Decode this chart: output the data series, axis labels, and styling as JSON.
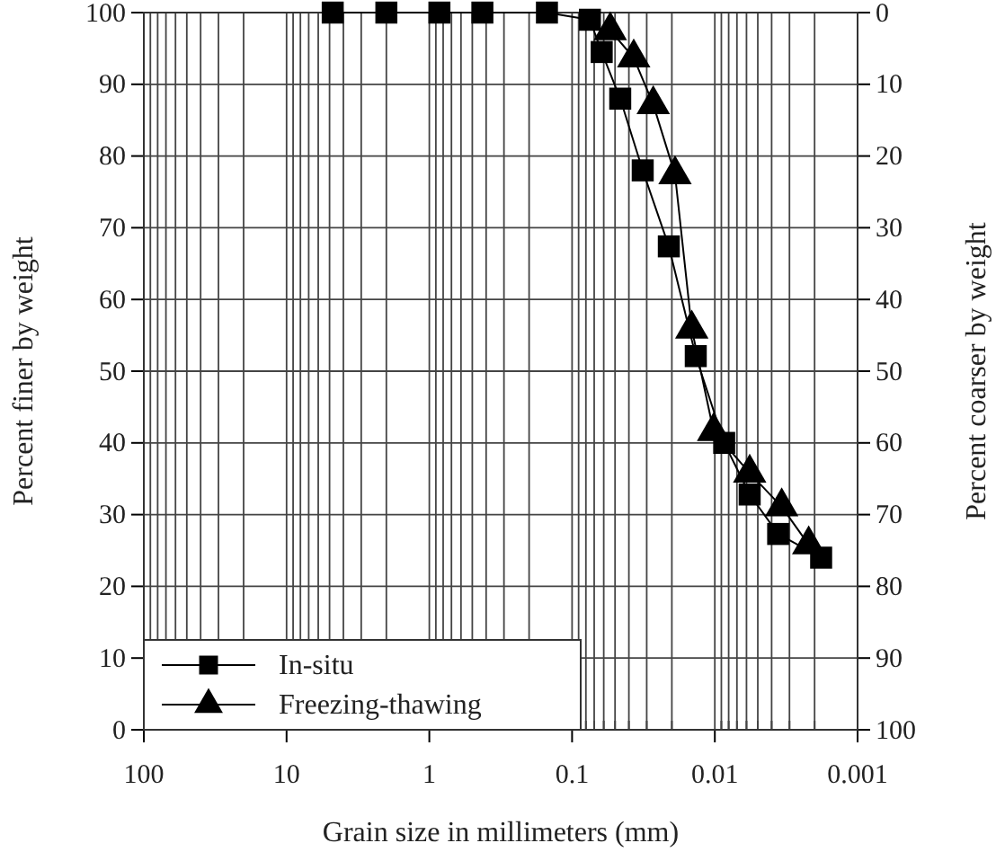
{
  "chart_data": {
    "type": "line",
    "xlabel": "Grain size in millimeters (mm)",
    "ylabel": "Percent finer by weight",
    "y2label": "Percent coarser by weight",
    "log": "x",
    "xlim": [
      100,
      0.001
    ],
    "xticks": [
      100,
      10,
      1,
      0.1,
      0.01,
      0.001
    ],
    "ylim": [
      0,
      100
    ],
    "yticks": [
      0,
      10,
      20,
      30,
      40,
      50,
      60,
      70,
      80,
      90,
      100
    ],
    "y2lim": [
      100,
      0
    ],
    "y2ticks": [
      0,
      10,
      20,
      30,
      40,
      50,
      60,
      70,
      80,
      90,
      100
    ],
    "grid": true,
    "legend": "bottom left",
    "series": [
      {
        "name": "In-situ",
        "color": "#000000",
        "marker": "square",
        "x": [
          4.75,
          2,
          0.85,
          0.425,
          0.15,
          0.075,
          0.062,
          0.046,
          0.032,
          0.021,
          0.0136,
          0.0086,
          0.0057,
          0.0036,
          0.0018
        ],
        "values": [
          100,
          100,
          100,
          100,
          100,
          99,
          94.5,
          88,
          78,
          67.4,
          52.1,
          40,
          32.8,
          27.3,
          24
        ]
      },
      {
        "name": "Freezing-thawing",
        "color": "#000000",
        "marker": "triangle",
        "x": [
          0.054,
          0.037,
          0.027,
          0.019,
          0.0145,
          0.0102,
          0.0057,
          0.0034,
          0.0022
        ],
        "values": [
          97.5,
          93.7,
          87.2,
          77.4,
          55.9,
          41.6,
          35.8,
          31.1,
          25.8
        ]
      }
    ]
  }
}
